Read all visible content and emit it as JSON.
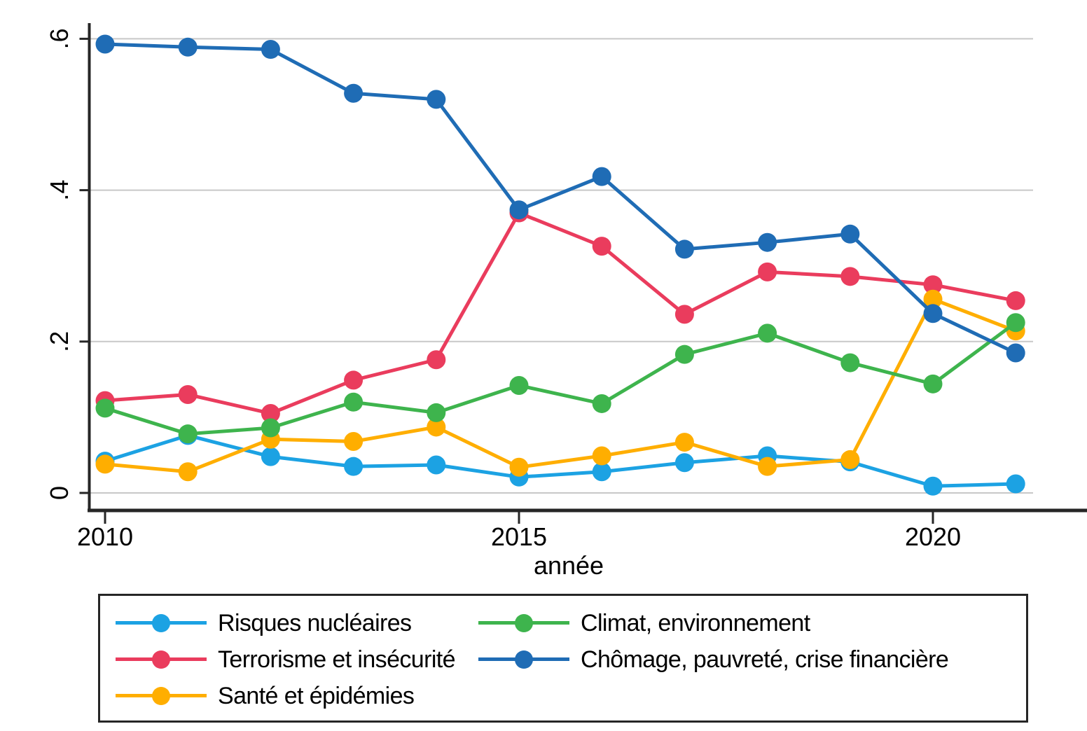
{
  "figure": {
    "background": "#ffffff",
    "axis_color": "#262626",
    "grid_color": "#c8c8c8",
    "text_color": "#000000"
  },
  "chart_data": {
    "type": "line",
    "title": "",
    "xlabel": "année",
    "ylabel": "",
    "x": [
      2010,
      2011,
      2012,
      2013,
      2014,
      2015,
      2016,
      2017,
      2018,
      2019,
      2020,
      2021
    ],
    "x_ticks": [
      2010,
      2015,
      2020
    ],
    "x_tick_labels": [
      "2010",
      "2015",
      "2020"
    ],
    "y_ticks": [
      0,
      0.2,
      0.4,
      0.6
    ],
    "y_tick_labels": [
      "0",
      ".2",
      ".4",
      ".6"
    ],
    "xlim": [
      2009.8,
      2021.2
    ],
    "ylim": [
      0,
      0.62
    ],
    "grid": "horizontal",
    "legend_position": "bottom",
    "marker": "circle",
    "series": [
      {
        "id": "risques-nucleaires",
        "name": "Risques nucléaires",
        "color": "#1ca2e3",
        "values": [
          0.042,
          0.076,
          0.048,
          0.035,
          0.037,
          0.021,
          0.028,
          0.04,
          0.049,
          0.041,
          0.009,
          0.012
        ]
      },
      {
        "id": "terrorisme-et-insecurite",
        "name": "Terrorisme et insécurité",
        "color": "#ea3c5d",
        "values": [
          0.122,
          0.13,
          0.105,
          0.149,
          0.176,
          0.37,
          0.326,
          0.236,
          0.292,
          0.286,
          0.275,
          0.254
        ]
      },
      {
        "id": "sante-et-epidemies",
        "name": "Santé et épidémies",
        "color": "#ffae00",
        "values": [
          0.038,
          0.028,
          0.071,
          0.068,
          0.087,
          0.034,
          0.049,
          0.067,
          0.035,
          0.044,
          0.256,
          0.214
        ]
      },
      {
        "id": "climat-environnement",
        "name": "Climat, environnement",
        "color": "#3eb44d",
        "values": [
          0.112,
          0.078,
          0.086,
          0.12,
          0.106,
          0.142,
          0.118,
          0.183,
          0.211,
          0.172,
          0.144,
          0.225
        ]
      },
      {
        "id": "chomage-pauvrete-crise-financiere",
        "name": "Chômage, pauvreté, crise financière",
        "color": "#1f6cb5",
        "values": [
          0.593,
          0.589,
          0.586,
          0.528,
          0.52,
          0.374,
          0.418,
          0.322,
          0.331,
          0.342,
          0.237,
          0.185
        ]
      }
    ]
  }
}
